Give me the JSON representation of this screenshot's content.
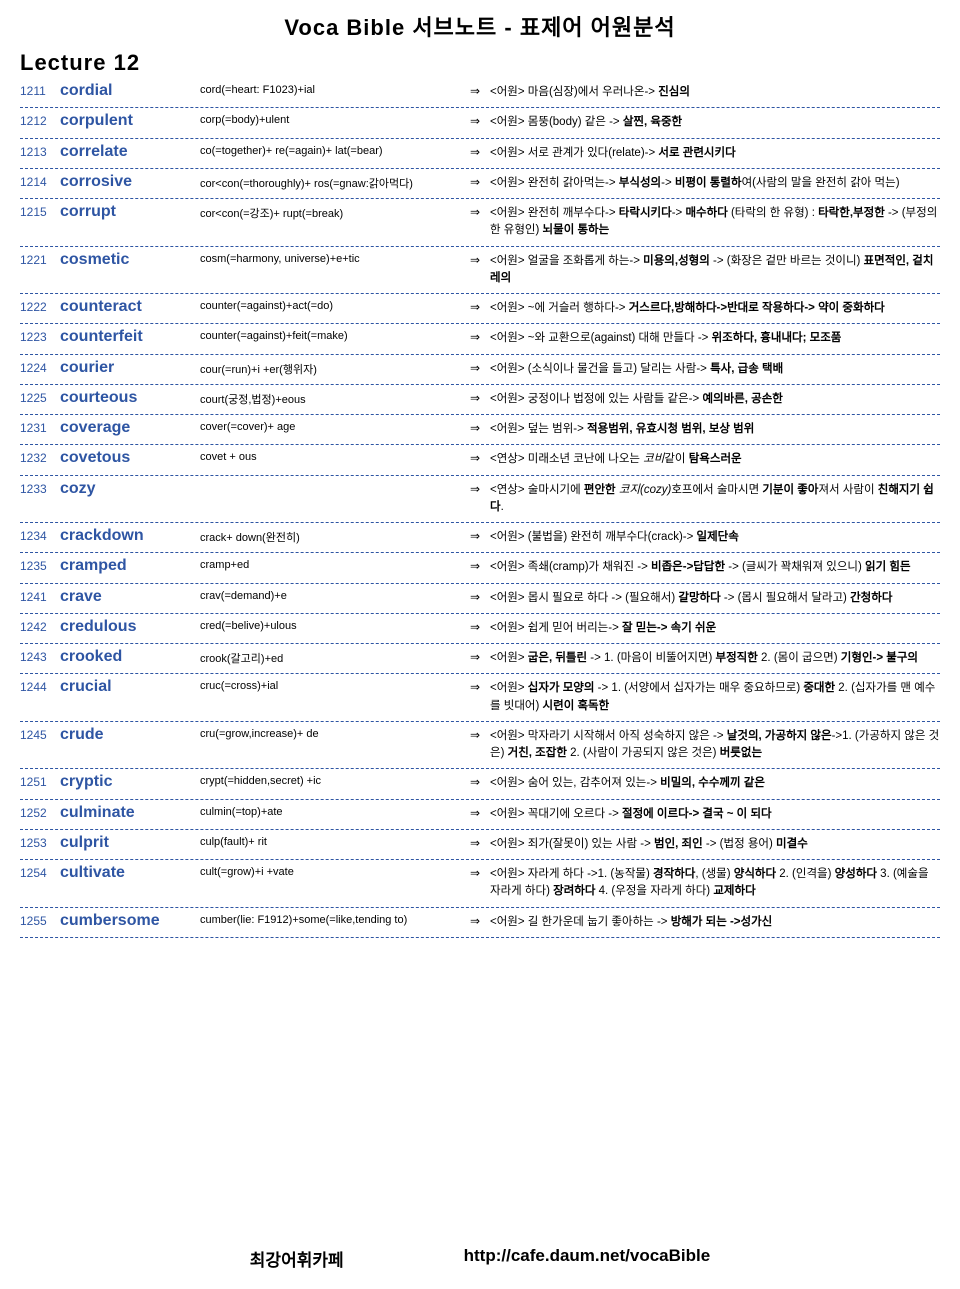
{
  "title": "Voca Bible 서브노트 - 표제어 어원분석",
  "lecture": "Lecture 12",
  "footer": {
    "left": "최강어휘카페",
    "right": "http://cafe.daum.net/vocaBible"
  },
  "rows": [
    {
      "num": "1211",
      "word": "cordial",
      "etym": "cord(=heart: F1023)+ial",
      "meaning": "<어원> 마음(심장)에서 우러나온-> <b>진심의</b>"
    },
    {
      "num": "1212",
      "word": "corpulent",
      "etym": "corp(=body)+ulent",
      "meaning": "<어원> 몸뚱(body) 같은 -> <b>살찐, 육중한</b>"
    },
    {
      "num": "1213",
      "word": "correlate",
      "etym": "co(=together)+ re(=again)+ lat(=bear)",
      "meaning": "<어원> 서로 관계가 있다(relate)-> <b>서로 관련시키다</b>"
    },
    {
      "num": "1214",
      "word": "corrosive",
      "etym": "cor<con(=thoroughly)+ ros(=gnaw:갉아먹다)",
      "meaning": "<어원> 완전히 갉아먹는-> <b>부식성의</b>-> <b>비평이 통렬하</b>여(사람의 말을 완전히 갉아 먹는)"
    },
    {
      "num": "1215",
      "word": "corrupt",
      "etym": "cor<con(=강조)+ rupt(=break)",
      "meaning": "<어원> 완전히 깨부수다-> <b>타락시키다</b>-> <b>매수하다</b> (타락의 한 유형) : <b>타락한,부정한</b> -> (부정의 한 유형인) <b>뇌물이 통하는</b>"
    },
    {
      "num": "1221",
      "word": "cosmetic",
      "etym": "cosm(=harmony, universe)+e+tic",
      "meaning": "<어원> 얼굴을 조화롭게 하는-> <b>미용의,성형의</b> -> (화장은 겉만 바르는 것이니) <b>표면적인, 겉치레의</b>"
    },
    {
      "num": "1222",
      "word": "counteract",
      "etym": "counter(=against)+act(=do)",
      "meaning": "<어원> ~에 거슬러 행하다-> <b>거스르다,방해하다->반대로 작용하다-> 약이 중화하다</b>"
    },
    {
      "num": "1223",
      "word": "counterfeit",
      "etym": "counter(=against)+feit(=make)",
      "meaning": "<어원> ~와 교환으로(against) 대해 만들다 -> <b>위조하다, 흉내내다; 모조품</b>"
    },
    {
      "num": "1224",
      "word": "courier",
      "etym": "cour(=run)+i +er(행위자)",
      "meaning": "<어원> (소식이나 물건을 들고) 달리는 사람-> <b>특사, 급송 택배</b>"
    },
    {
      "num": "1225",
      "word": "courteous",
      "etym": "court(궁정,법정)+eous",
      "meaning": "<어원> 궁정이나 법정에 있는 사람들 같은-> <b>예의바른, 공손한</b>"
    },
    {
      "num": "1231",
      "word": "coverage",
      "etym": "cover(=cover)+ age",
      "meaning": "<어원> 덮는 범위-> <b>적용범위, 유효시청 범위, 보상 범위</b>"
    },
    {
      "num": "1232",
      "word": "covetous",
      "etym": "covet + ous",
      "meaning": "<연상> 미래소년 코난에 나오는 <i>코비</i>같이 <b>탐욕스러운</b>"
    },
    {
      "num": "1233",
      "word": "cozy",
      "etym": "",
      "meaning": "<연상> 술마시기에 <b>편안한</b> <i>코지(cozy)</i>호프에서 술마시면 <b>기분이 좋아</b>져서 사람이 <b>친해지기 쉽다</b>."
    },
    {
      "num": "1234",
      "word": "crackdown",
      "etym": "crack+ down(완전히)",
      "meaning": "<어원> (불법을) 완전히 깨부수다(crack)-> <b>일제단속</b>"
    },
    {
      "num": "1235",
      "word": "cramped",
      "etym": "cramp+ed",
      "meaning": "<어원> 족쇄(cramp)가 채워진 -> <b>비좁은->답답한</b> -> (글씨가 꽉채워져 있으니) <b>읽기 힘든</b>"
    },
    {
      "num": "1241",
      "word": "crave",
      "etym": "crav(=demand)+e",
      "meaning": "<어원> 몹시 필요로 하다 -> (필요해서) <b>갈망하다</b> -> (몹시 필요해서 달라고) <b>간청하다</b>"
    },
    {
      "num": "1242",
      "word": "credulous",
      "etym": "cred(=belive)+ulous",
      "meaning": "<어원> 쉽게 믿어 버리는-> <b>잘 믿는-> 속기 쉬운</b>"
    },
    {
      "num": "1243",
      "word": "crooked",
      "etym": "crook(갈고리)+ed",
      "meaning": "<어원> <b>굽은, 뒤틀린</b>  -> 1. (마음이 비뚤어지면) <b>부정직한</b>  2. (몸이 굽으면) <b>기형인-> 불구의</b>"
    },
    {
      "num": "1244",
      "word": "crucial",
      "etym": "cruc(=cross)+ial",
      "meaning": "<어원> <b>십자가 모양의</b>  -> 1.  (서양에서 십자가는 매우 중요하므로) <b>중대한</b>  2. (십자가를 맨 예수를 빗대어) <b>시련이 혹독한</b>"
    },
    {
      "num": "1245",
      "word": "crude",
      "etym": "cru(=grow,increase)+ de",
      "meaning": "<어원> 막자라기 시작해서 아직 성숙하지 않은 -> <b>날것의, 가공하지 않은</b>->1. (가공하지 않은 것은) <b>거친, 조잡한</b> 2. (사람이 가공되지 않은 것은) <b>버릇없는</b>"
    },
    {
      "num": "1251",
      "word": "cryptic",
      "etym": "crypt(=hidden,secret) +ic",
      "meaning": "<어원> 숨어 있는, 감추어져 있는-> <b>비밀의, 수수께끼 같은</b>"
    },
    {
      "num": "1252",
      "word": "culminate",
      "etym": "culmin(=top)+ate",
      "meaning": "<어원> 꼭대기에 오르다 -> <b>절정에 이르다-> 결국 ~ 이 되다</b>"
    },
    {
      "num": "1253",
      "word": "culprit",
      "etym": "culp(fault)+ rit",
      "meaning": "<어원> 죄가(잘못이) 있는 사람 -> <b>범인, 죄인</b> -> (법정 용어) <b>미결수</b>"
    },
    {
      "num": "1254",
      "word": "cultivate",
      "etym": "cult(=grow)+i +vate",
      "meaning": "<어원> 자라게 하다 ->1. (농작물) <b>경작하다</b>, (생물) <b>양식하다</b> 2. (인격을) <b>양성하다</b> 3. (예술을 자라게 하다) <b>장려하다</b> 4. (우정을 자라게 하다) <b>교제하다</b>"
    },
    {
      "num": "1255",
      "word": "cumbersome",
      "etym": "cumber(lie: F1912)+some(=like,tending to)",
      "meaning": "<어원> 길 한가운데 눕기 좋아하는 -> <b>방해가 되는 ->성가신</b>"
    }
  ]
}
